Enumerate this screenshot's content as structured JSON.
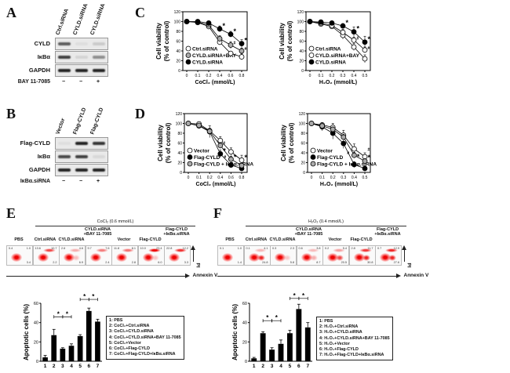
{
  "panel_letters": {
    "A": "A",
    "B": "B",
    "C": "C",
    "D": "D",
    "E": "E",
    "F": "F"
  },
  "panel_a": {
    "lanes": [
      "Ctrl.siRNA",
      "CYLD.siRNA",
      "CYLD.siRNA"
    ],
    "rows": [
      {
        "label": "CYLD",
        "bands": [
          0.7,
          0.05,
          0.15
        ]
      },
      {
        "label": "IκBα",
        "bands": [
          0.85,
          0.1,
          0.45
        ]
      },
      {
        "label": "GAPDH",
        "bands": [
          1,
          1,
          1
        ]
      }
    ],
    "treatment": {
      "label": "BAY 11-7085",
      "values": [
        "−",
        "−",
        "+"
      ]
    }
  },
  "panel_b": {
    "lanes": [
      "Vector",
      "Flag-CYLD",
      "Flag-CYLD"
    ],
    "rows": [
      {
        "label": "Flag-CYLD",
        "bands": [
          0.05,
          1,
          0.9
        ]
      },
      {
        "label": "IκBα",
        "bands": [
          0.8,
          0.85,
          0.08
        ]
      },
      {
        "label": "GAPDH",
        "bands": [
          1,
          1,
          1
        ]
      }
    ],
    "treatment": {
      "label": "IκBα.siRNA",
      "values": [
        "−",
        "−",
        "+"
      ]
    }
  },
  "chart_data": [
    {
      "id": "C-left",
      "type": "line",
      "xlabel": "CoCl₂ (mmol/L)",
      "ylabel_lines": [
        "Cell viability",
        "(% of control)"
      ],
      "categories": [
        "0",
        "0.1",
        "0.2",
        "0.4",
        "0.6",
        "0.8"
      ],
      "ylim": [
        0,
        120
      ],
      "yticks": [
        0,
        20,
        40,
        60,
        80,
        100,
        120
      ],
      "series": [
        {
          "name": "Ctrl.siRNA",
          "marker": "open",
          "values": [
            100,
            98,
            90,
            58,
            35,
            28
          ],
          "err": [
            2,
            3,
            6,
            6,
            4,
            6
          ],
          "sig": [
            "",
            "",
            "",
            "",
            "",
            ""
          ]
        },
        {
          "name": "CYLD.siRNA+BAY",
          "marker": "gray",
          "values": [
            100,
            99,
            93,
            65,
            52,
            40
          ],
          "err": [
            2,
            3,
            4,
            6,
            7,
            6
          ],
          "sig": [
            "",
            "",
            "",
            "",
            "#",
            "#"
          ]
        },
        {
          "name": "CYLD.siRNA",
          "marker": "filled",
          "values": [
            100,
            100,
            97,
            85,
            74,
            55
          ],
          "err": [
            2,
            3,
            3,
            6,
            6,
            8
          ],
          "sig": [
            "",
            "",
            "",
            "*",
            "*",
            "*"
          ]
        }
      ]
    },
    {
      "id": "C-right",
      "type": "line",
      "xlabel": "H₂O₂ (mmol/L)",
      "ylabel_lines": [
        "Cell viability",
        "(% of control)"
      ],
      "categories": [
        "0",
        "0.1",
        "0.2",
        "0.3",
        "0.4",
        "0.5"
      ],
      "ylim": [
        0,
        120
      ],
      "yticks": [
        0,
        20,
        40,
        60,
        80,
        100,
        120
      ],
      "series": [
        {
          "name": "Ctrl.siRNA",
          "marker": "open",
          "values": [
            100,
            95,
            90,
            72,
            48,
            24
          ],
          "err": [
            2,
            3,
            4,
            8,
            7,
            8
          ],
          "sig": [
            "",
            "",
            "",
            "",
            "",
            ""
          ]
        },
        {
          "name": "CYLD.siRNA+BAY",
          "marker": "open",
          "values": [
            100,
            97,
            92,
            78,
            62,
            42
          ],
          "err": [
            2,
            3,
            4,
            6,
            6,
            6
          ],
          "sig": [
            "",
            "",
            "",
            "",
            "#",
            "#"
          ]
        },
        {
          "name": "CYLD.siRNA",
          "marker": "filled",
          "values": [
            100,
            99,
            97,
            91,
            79,
            58
          ],
          "err": [
            2,
            2,
            3,
            5,
            10,
            12
          ],
          "sig": [
            "",
            "",
            "",
            "*",
            "*",
            "*"
          ]
        }
      ]
    },
    {
      "id": "D-left",
      "type": "line",
      "xlabel": "CoCl₂ (mmol/L)",
      "ylabel_lines": [
        "Cell viability",
        "(% of control)"
      ],
      "categories": [
        "0",
        "0.1",
        "0.2",
        "0.4",
        "0.6",
        "0.8"
      ],
      "ylim": [
        0,
        120
      ],
      "yticks": [
        0,
        20,
        40,
        60,
        80,
        100,
        120
      ],
      "series": [
        {
          "name": "Vector",
          "marker": "open",
          "values": [
            100,
            99,
            85,
            65,
            42,
            25
          ],
          "err": [
            2,
            2,
            4,
            8,
            8,
            10
          ],
          "sig": [
            "",
            "",
            "",
            "",
            "",
            ""
          ]
        },
        {
          "name": "Flag-CYLD",
          "marker": "filled",
          "values": [
            100,
            95,
            83,
            38,
            15,
            8
          ],
          "err": [
            2,
            3,
            12,
            8,
            5,
            5
          ],
          "sig": [
            "",
            "",
            "",
            "*",
            "*",
            "*"
          ]
        },
        {
          "name": "Flag-CYLD + IκBα.siRNA",
          "marker": "gray",
          "values": [
            100,
            96,
            84,
            55,
            27,
            14
          ],
          "err": [
            2,
            3,
            6,
            6,
            6,
            5
          ],
          "sig": [
            "",
            "",
            "",
            "#",
            "#",
            ""
          ]
        }
      ]
    },
    {
      "id": "D-right",
      "type": "line",
      "xlabel": "H₂O₂ (mmol/L)",
      "ylabel_lines": [
        "Cell viability",
        "(% of control)"
      ],
      "categories": [
        "0",
        "0.1",
        "0.2",
        "0.3",
        "0.4",
        "0.5"
      ],
      "ylim": [
        0,
        120
      ],
      "yticks": [
        0,
        20,
        40,
        60,
        80,
        100,
        120
      ],
      "series": [
        {
          "name": "Vector",
          "marker": "open",
          "values": [
            100,
            97,
            92,
            76,
            48,
            32
          ],
          "err": [
            2,
            3,
            8,
            10,
            10,
            8
          ],
          "sig": [
            "",
            "",
            "",
            "",
            "",
            ""
          ]
        },
        {
          "name": "Flag-CYLD",
          "marker": "filled",
          "values": [
            100,
            93,
            80,
            59,
            16,
            8
          ],
          "err": [
            2,
            8,
            12,
            10,
            6,
            5
          ],
          "sig": [
            "",
            "",
            "",
            "",
            "*",
            "*"
          ]
        },
        {
          "name": "Flag-CYLD + IκBα.siRNA",
          "marker": "gray",
          "values": [
            100,
            95,
            88,
            72,
            35,
            23
          ],
          "err": [
            2,
            4,
            5,
            6,
            6,
            5
          ],
          "sig": [
            "",
            "",
            "",
            "",
            "#",
            "#"
          ]
        }
      ]
    },
    {
      "id": "E-bar",
      "type": "bar",
      "ylabel": "Apoptotic cells (%)",
      "categories": [
        "1",
        "2",
        "3",
        "4",
        "5",
        "6",
        "7"
      ],
      "values": [
        4,
        27,
        13,
        16,
        26,
        52,
        41
      ],
      "err": [
        2,
        6,
        1,
        2,
        1.5,
        3,
        2.5
      ],
      "ylim": [
        0,
        60
      ],
      "yticks": [
        0,
        20,
        40,
        60
      ],
      "brackets": [
        {
          "from": 2,
          "to": 3,
          "label": "*",
          "level": 46
        },
        {
          "from": 3,
          "to": 4,
          "label": "*",
          "level": 46
        },
        {
          "from": 5,
          "to": 6,
          "label": "*",
          "level": 64
        },
        {
          "from": 6,
          "to": 7,
          "label": "*",
          "level": 64
        }
      ],
      "legend": [
        "1: PBS",
        "2: CoCl₂+Ctrl.siRNA",
        "3: CoCl₂+CYLD.siRNA",
        "4: CoCl₂+CYLD.siRNA+BAY 11-7085",
        "5: CoCl₂+Vector",
        "6: CoCl₂+Flag-CYLD",
        "7: CoCl₂+Flag-CYLD+IκBα.siRNA"
      ]
    },
    {
      "id": "F-bar",
      "type": "bar",
      "ylabel": "Apoptotic cells (%)",
      "categories": [
        "1",
        "2",
        "3",
        "4",
        "5",
        "6",
        "7"
      ],
      "values": [
        3,
        29,
        12,
        18,
        29,
        54,
        35
      ],
      "err": [
        1,
        1.5,
        2,
        4,
        3,
        5,
        5
      ],
      "ylim": [
        0,
        60
      ],
      "yticks": [
        0,
        20,
        40,
        60
      ],
      "brackets": [
        {
          "from": 2,
          "to": 3,
          "label": "*",
          "level": 42
        },
        {
          "from": 3,
          "to": 4,
          "label": "*",
          "level": 42
        },
        {
          "from": 5,
          "to": 6,
          "label": "*",
          "level": 65
        },
        {
          "from": 6,
          "to": 7,
          "label": "*",
          "level": 65
        }
      ],
      "legend": [
        "1: PBS",
        "2: H₂O₂+Ctrl.siRNA",
        "3: H₂O₂+CYLD.siRNA",
        "4: H₂O₂+CYLD.siRNA+BAY 11-7085",
        "5: H₂O₂+Vector",
        "6: H₂O₂+Flag-CYLD",
        "7: H₂O₂+Flag-CYLD+IκBα.siRNA"
      ]
    }
  ],
  "panel_e": {
    "treatment": "CoCl₂ (0.6 mmol/L)",
    "x_axis": "Annexin V",
    "y_axis": "PI",
    "groups": [
      {
        "l1": "",
        "l2": "PBS",
        "ul": "0.4",
        "ur": "1.0",
        "lr": "3.4"
      },
      {
        "l1": "",
        "l2": "Ctrl.siRNA",
        "ul": "13.6",
        "ur": "10.7",
        "lr": "2.2"
      },
      {
        "l1": "",
        "l2": "CYLD.siRNA",
        "ul": "2.6",
        "ur": "4.6",
        "lr": "6.9"
      },
      {
        "l1": "CYLD.siRNA",
        "l2": "+BAY 11-7085",
        "ul": "9.7",
        "ur": "7.6",
        "lr": "2.4"
      },
      {
        "l1": "",
        "l2": "Vector",
        "ul": "11.8",
        "ur": "8.1",
        "lr": "2.8"
      },
      {
        "l1": "",
        "l2": "Flag-CYLD",
        "ul": "10.0",
        "ur": "23.4",
        "lr": "6.0"
      },
      {
        "l1": "Flag-CYLD",
        "l2": "+IκBα.siRNA",
        "ul": "22.8",
        "ur": "12.2",
        "lr": "3.3"
      }
    ]
  },
  "panel_f": {
    "treatment": "H₂O₂ (0.4 mmol/L)",
    "x_axis": "Annexin V",
    "y_axis": "PI",
    "groups": [
      {
        "l1": "",
        "l2": "PBS",
        "ul": "0.1",
        "ur": "1.0",
        "lr": "1.4"
      },
      {
        "l1": "",
        "l2": "Ctrl.siRNA",
        "ul": "0.1",
        "ur": "4.1",
        "lr": "24.8"
      },
      {
        "l1": "",
        "l2": "CYLD.siRNA",
        "ul": "0.3",
        "ur": "2.3",
        "lr": "5.8"
      },
      {
        "l1": "CYLD.siRNA",
        "l2": "+BAY 11-7085",
        "ul": "0.6",
        "ur": "3.8",
        "lr": "8.7"
      },
      {
        "l1": "",
        "l2": "Vector",
        "ul": "0.2",
        "ur": "5.4",
        "lr": "20.5"
      },
      {
        "l1": "",
        "l2": "Flag-CYLD",
        "ul": "2.8",
        "ur": "11.7",
        "lr": "30.8"
      },
      {
        "l1": "Flag-CYLD",
        "l2": "+IκBα.siRNA",
        "ul": "0.7",
        "ur": "12.9",
        "lr": "27.6"
      }
    ]
  }
}
